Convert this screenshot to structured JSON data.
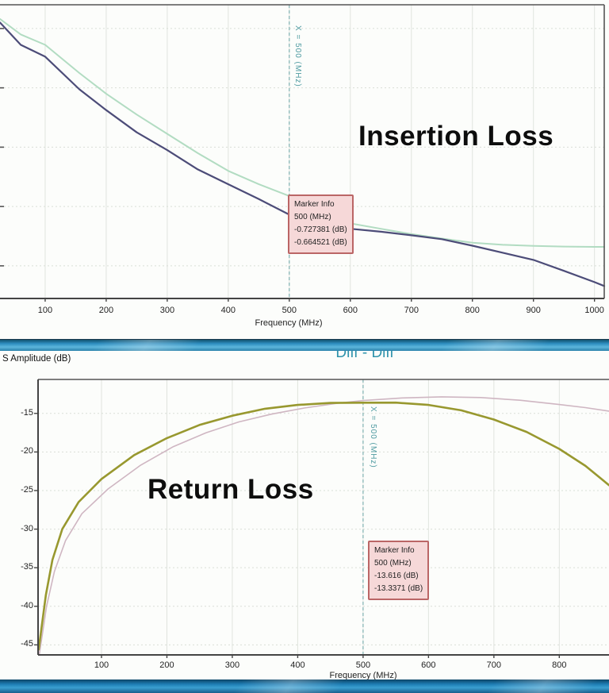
{
  "strip": {
    "left_label": "S Amplitude (dB)",
    "center_title": "Diff - Diff"
  },
  "colors": {
    "marker_line": "#6aa6a6",
    "marker_text": "#4d9aa0",
    "marker_box_bg": "#f6d8d8",
    "marker_box_border": "#bb6666",
    "grid_vertical": "#e0e4de",
    "grid_horizontal": "#d9ded7",
    "axis": "#444444",
    "divider_bar": "#2d8ec0",
    "bottom_bar": "#1d7db4"
  },
  "chart_data": [
    {
      "type": "line",
      "id": "insertion",
      "annotation": "Insertion Loss",
      "xlabel": "Frequency (MHz)",
      "x_ticks": [
        100,
        200,
        300,
        400,
        500,
        600,
        700,
        800,
        900,
        1000
      ],
      "xlim": [
        26,
        1016
      ],
      "ylim": [
        -1.01,
        -0.02
      ],
      "y_gridlines": [
        -0.1,
        -0.3,
        -0.5,
        -0.7,
        -0.9
      ],
      "grid": true,
      "legend": "none",
      "marker": {
        "x": 500,
        "label": "X = 500 (MHz)"
      },
      "marker_box": {
        "title": "Marker Info",
        "lines": [
          "500 (MHz)",
          "-0.727381 (dB)",
          "-0.664521 (dB)"
        ]
      },
      "series": [
        {
          "name": "trace-dark-blue",
          "color": "#4c4c78",
          "width": 2.2,
          "points": [
            [
              26,
              -0.08
            ],
            [
              60,
              -0.155
            ],
            [
              100,
              -0.195
            ],
            [
              156,
              -0.305
            ],
            [
              200,
              -0.375
            ],
            [
              250,
              -0.45
            ],
            [
              300,
              -0.51
            ],
            [
              350,
              -0.575
            ],
            [
              400,
              -0.625
            ],
            [
              450,
              -0.675
            ],
            [
              500,
              -0.7274
            ],
            [
              550,
              -0.755
            ],
            [
              600,
              -0.775
            ],
            [
              650,
              -0.785
            ],
            [
              700,
              -0.797
            ],
            [
              750,
              -0.81
            ],
            [
              800,
              -0.832
            ],
            [
              850,
              -0.856
            ],
            [
              900,
              -0.88
            ],
            [
              950,
              -0.917
            ],
            [
              1000,
              -0.955
            ],
            [
              1016,
              -0.968
            ]
          ]
        },
        {
          "name": "trace-light-green",
          "color": "#b2dcc2",
          "width": 2,
          "points": [
            [
              26,
              -0.068
            ],
            [
              60,
              -0.12
            ],
            [
              100,
              -0.155
            ],
            [
              156,
              -0.25
            ],
            [
              200,
              -0.32
            ],
            [
              250,
              -0.39
            ],
            [
              300,
              -0.455
            ],
            [
              350,
              -0.52
            ],
            [
              400,
              -0.58
            ],
            [
              450,
              -0.625
            ],
            [
              500,
              -0.6645
            ],
            [
              550,
              -0.715
            ],
            [
              600,
              -0.757
            ],
            [
              650,
              -0.775
            ],
            [
              700,
              -0.793
            ],
            [
              750,
              -0.808
            ],
            [
              800,
              -0.822
            ],
            [
              850,
              -0.829
            ],
            [
              900,
              -0.833
            ],
            [
              950,
              -0.835
            ],
            [
              1000,
              -0.836
            ],
            [
              1016,
              -0.836
            ]
          ]
        }
      ]
    },
    {
      "type": "line",
      "id": "return",
      "annotation": "Return Loss",
      "xlabel": "Frequency (MHz)",
      "x_ticks": [
        100,
        200,
        300,
        400,
        500,
        600,
        700,
        800
      ],
      "y_ticks": [
        -15,
        -20,
        -25,
        -30,
        -35,
        -40,
        -45
      ],
      "xlim": [
        3,
        876
      ],
      "ylim": [
        -46.3,
        -10.6
      ],
      "grid": true,
      "legend": "none",
      "marker": {
        "x": 500,
        "label": "X = 500 (MHz)"
      },
      "marker_box": {
        "title": "Marker Info",
        "lines": [
          "500 (MHz)",
          "-13.616 (dB)",
          "-13.3371 (dB)"
        ]
      },
      "series": [
        {
          "name": "trace-olive",
          "color": "#98982f",
          "width": 2.6,
          "points": [
            [
              4,
              -45.6
            ],
            [
              8,
              -43
            ],
            [
              15,
              -38.5
            ],
            [
              25,
              -34
            ],
            [
              40,
              -30
            ],
            [
              65,
              -26.5
            ],
            [
              100,
              -23.5
            ],
            [
              150,
              -20.4
            ],
            [
              200,
              -18.2
            ],
            [
              250,
              -16.5
            ],
            [
              300,
              -15.3
            ],
            [
              350,
              -14.4
            ],
            [
              400,
              -13.9
            ],
            [
              450,
              -13.65
            ],
            [
              500,
              -13.616
            ],
            [
              550,
              -13.6
            ],
            [
              600,
              -13.9
            ],
            [
              650,
              -14.6
            ],
            [
              700,
              -15.8
            ],
            [
              750,
              -17.4
            ],
            [
              800,
              -19.6
            ],
            [
              840,
              -21.8
            ],
            [
              876,
              -24.3
            ]
          ]
        },
        {
          "name": "trace-pink",
          "color": "#cfb6c2",
          "width": 1.6,
          "points": [
            [
              5,
              -46.2
            ],
            [
              9,
              -44
            ],
            [
              16,
              -40
            ],
            [
              28,
              -35.5
            ],
            [
              45,
              -31.5
            ],
            [
              70,
              -28
            ],
            [
              110,
              -24.8
            ],
            [
              160,
              -21.7
            ],
            [
              210,
              -19.3
            ],
            [
              260,
              -17.5
            ],
            [
              310,
              -16.1
            ],
            [
              360,
              -15.1
            ],
            [
              410,
              -14.3
            ],
            [
              460,
              -13.7
            ],
            [
              500,
              -13.3371
            ],
            [
              560,
              -13.0
            ],
            [
              620,
              -12.85
            ],
            [
              680,
              -12.95
            ],
            [
              740,
              -13.3
            ],
            [
              800,
              -13.85
            ],
            [
              840,
              -14.25
            ],
            [
              876,
              -14.7
            ]
          ]
        }
      ]
    }
  ]
}
